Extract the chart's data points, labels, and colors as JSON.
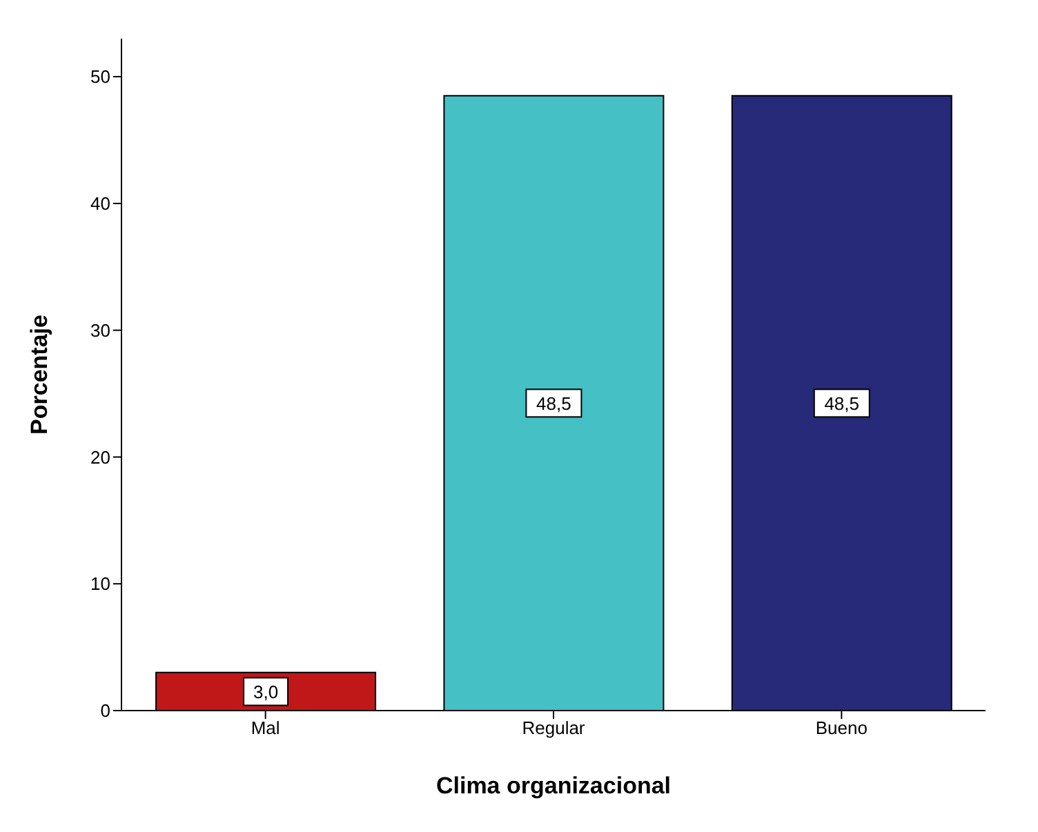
{
  "chart_data": {
    "type": "bar",
    "xlabel": "Clima organizacional",
    "ylabel": "Porcentaje",
    "categories": [
      "Mal",
      "Regular",
      "Bueno"
    ],
    "values": [
      3.0,
      48.5,
      48.5
    ],
    "colors": [
      "#c01818",
      "#45c0c5",
      "#262a78"
    ],
    "value_labels": [
      "3,0",
      "48,5",
      "48,5"
    ],
    "ylim": [
      0,
      53
    ],
    "yticks": [
      0,
      10,
      20,
      30,
      40,
      50
    ],
    "grid": false,
    "legend": false
  }
}
